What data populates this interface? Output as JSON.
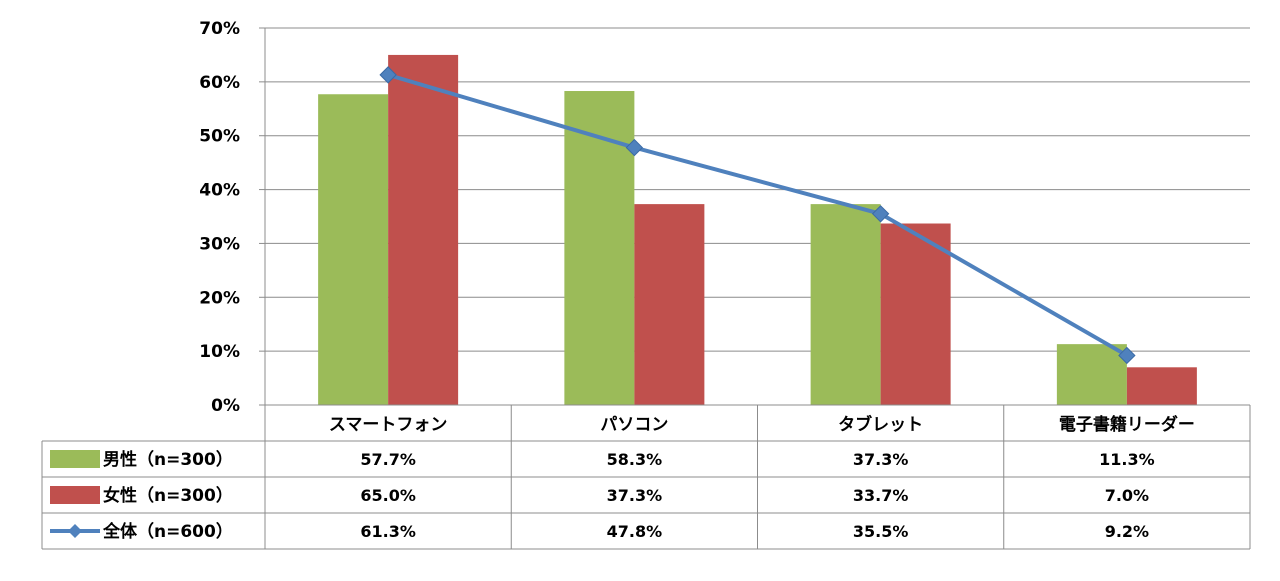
{
  "chart_data": {
    "type": "bar",
    "categories": [
      "スマートフォン",
      "パソコン",
      "タブレット",
      "電子書籍リーダー"
    ],
    "ylim": [
      0,
      70
    ],
    "yticks": [
      "0%",
      "10%",
      "20%",
      "30%",
      "40%",
      "50%",
      "60%",
      "70%"
    ],
    "grid": true,
    "legend": "data-table-left",
    "series": [
      {
        "name": "男性（n=300）",
        "type": "bar",
        "color": "#9BBB59",
        "marker": "square",
        "values": [
          57.7,
          58.3,
          37.3,
          11.3
        ],
        "labels": [
          "57.7%",
          "58.3%",
          "37.3%",
          "11.3%"
        ]
      },
      {
        "name": "女性（n=300）",
        "type": "bar",
        "color": "#C0504D",
        "marker": "square",
        "values": [
          65.0,
          37.3,
          33.7,
          7.0
        ],
        "labels": [
          "65.0%",
          "37.3%",
          "33.7%",
          "7.0%"
        ]
      },
      {
        "name": "全体（n=600）",
        "type": "line",
        "color": "#4F81BD",
        "marker": "diamond",
        "values": [
          61.3,
          47.8,
          35.5,
          9.2
        ],
        "labels": [
          "61.3%",
          "47.8%",
          "35.5%",
          "9.2%"
        ]
      }
    ]
  }
}
